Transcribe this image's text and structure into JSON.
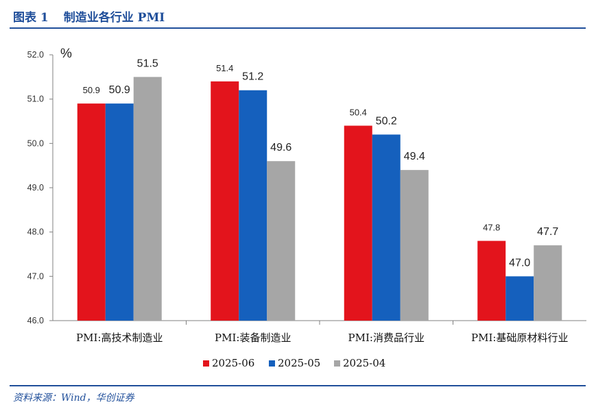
{
  "header": {
    "figure_no": "图表 1",
    "title": "制造业各行业 PMI"
  },
  "source": "资料来源：Wind，华创证券",
  "colors": {
    "brand": "#1f4e9a",
    "series": [
      "#e3141c",
      "#1560bd",
      "#a6a6a6"
    ]
  },
  "chart_data": {
    "type": "bar",
    "unit": "%",
    "categories": [
      "PMI:高技术制造业",
      "PMI:装备制造业",
      "PMI:消费品行业",
      "PMI:基础原材料行业"
    ],
    "series": [
      {
        "name": "2025-06",
        "values": [
          50.9,
          51.4,
          50.4,
          47.8
        ]
      },
      {
        "name": "2025-05",
        "values": [
          50.9,
          51.2,
          50.2,
          47.0
        ]
      },
      {
        "name": "2025-04",
        "values": [
          51.5,
          49.6,
          49.4,
          47.7
        ]
      }
    ],
    "ylim": [
      46.0,
      52.0
    ],
    "yticks": [
      "46.0",
      "47.0",
      "48.0",
      "49.0",
      "50.0",
      "51.0",
      "52.0"
    ],
    "grid": false,
    "legend": "bottom"
  }
}
